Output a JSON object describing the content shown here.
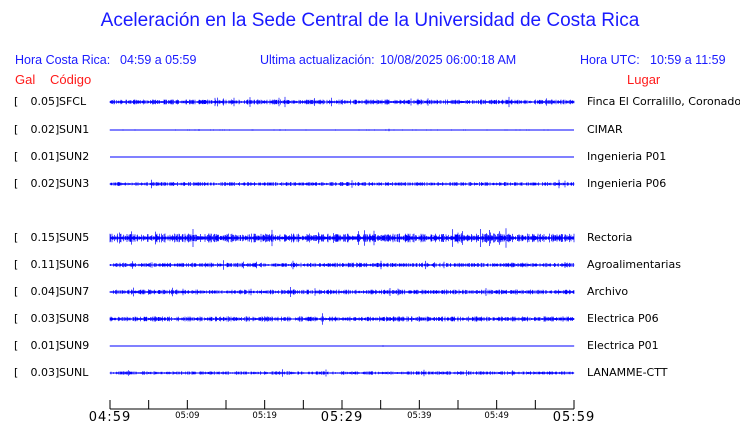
{
  "title": "Aceleración en la Sede Central de la Universidad de Costa Rica",
  "hora_cr": {
    "label": "Hora Costa Rica:",
    "value": "04:59 a 05:59"
  },
  "ultima": {
    "label": "Ultima actualización:",
    "value": "10/08/2025 06:00:18 AM"
  },
  "hora_utc": {
    "label": "Hora UTC:",
    "value": "10:59 a 11:59"
  },
  "columns": {
    "gal": "Gal",
    "codigo": "Código",
    "lugar": "Lugar"
  },
  "trace_color": "#0000ff",
  "stations": [
    {
      "gal": "0.05",
      "code": "SFCL",
      "place": "Finca El Corralillo, Coronado"
    },
    {
      "gal": "0.02",
      "code": "SUN1",
      "place": "CIMAR"
    },
    {
      "gal": "0.01",
      "code": "SUN2",
      "place": "Ingenieria P01"
    },
    {
      "gal": "0.02",
      "code": "SUN3",
      "place": "Ingenieria P06"
    },
    {
      "gal": "0.15",
      "code": "SUN5",
      "place": "Rectoria"
    },
    {
      "gal": "0.11",
      "code": "SUN6",
      "place": "Agroalimentarias"
    },
    {
      "gal": "0.04",
      "code": "SUN7",
      "place": "Archivo"
    },
    {
      "gal": "0.03",
      "code": "SUN8",
      "place": "Electrica P06"
    },
    {
      "gal": "0.01",
      "code": "SUN9",
      "place": "Electrica P01"
    },
    {
      "gal": "0.03",
      "code": "SUNL",
      "place": "LANAMME-CTT"
    }
  ],
  "time_axis": {
    "major": [
      "04:59",
      "05:29",
      "05:59"
    ],
    "minor": [
      "05:09",
      "05:19",
      "05:39",
      "05:49"
    ]
  }
}
